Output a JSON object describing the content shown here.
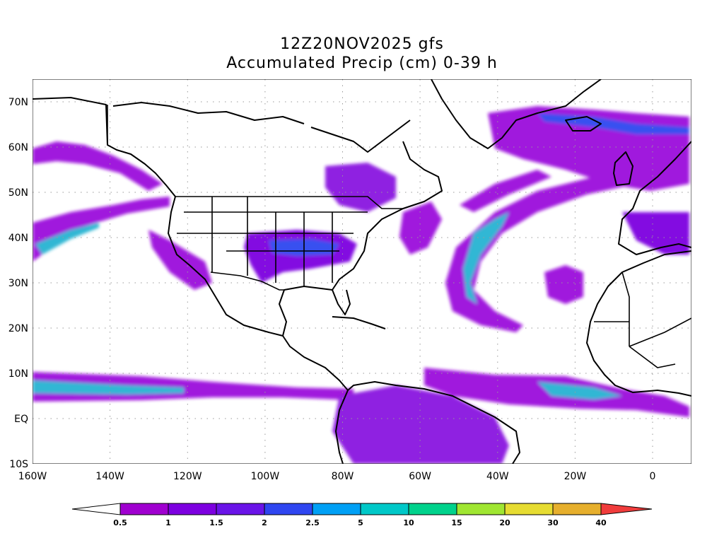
{
  "title": {
    "line1": "12Z20NOV2025 gfs",
    "line2": "Accumulated Precip (cm) 0-39 h"
  },
  "map": {
    "lon_range": [
      -160,
      10
    ],
    "lat_range": [
      -10,
      75
    ],
    "lat_tick_labels": [
      "70N",
      "60N",
      "50N",
      "40N",
      "30N",
      "20N",
      "10N",
      "EQ",
      "10S"
    ],
    "lon_tick_labels": [
      "160W",
      "140W",
      "120W",
      "100W",
      "80W",
      "60W",
      "40W",
      "20W",
      "0"
    ],
    "gridlines": "dotted"
  },
  "colorbar": {
    "labels": [
      "0.5",
      "1",
      "1.5",
      "2",
      "2.5",
      "5",
      "10",
      "15",
      "20",
      "30",
      "40"
    ],
    "colors": [
      "#a000d0",
      "#7d00e0",
      "#6a14e8",
      "#2f46f0",
      "#00a0f5",
      "#00c8c8",
      "#00d28c",
      "#a0e632",
      "#e6dc32",
      "#e6af2d",
      "#f08228",
      "#f03c3c"
    ]
  }
}
